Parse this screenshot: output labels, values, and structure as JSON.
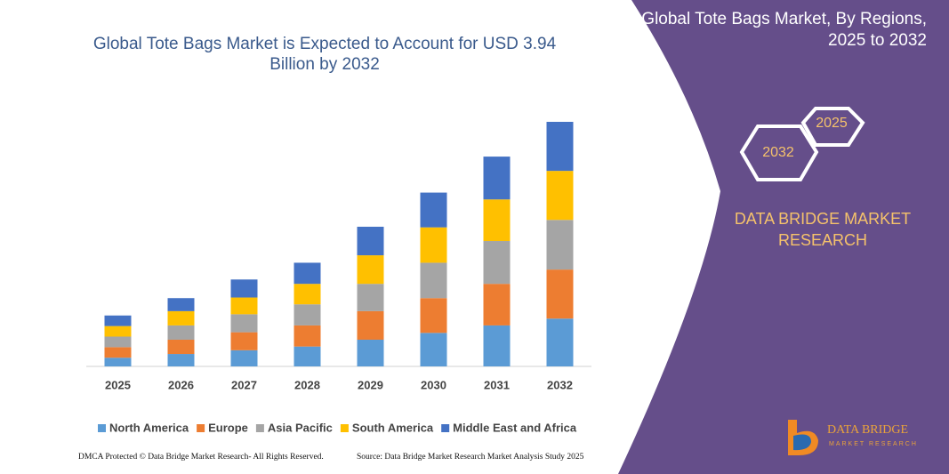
{
  "chart_data": {
    "type": "stacked_bar",
    "title": "Global Tote Bags Market is Expected to Account for USD 3.94 Billion by 2032",
    "categories": [
      "2025",
      "2026",
      "2027",
      "2028",
      "2029",
      "2030",
      "2031",
      "2032"
    ],
    "series": [
      {
        "name": "North America",
        "color": "#5b9bd5",
        "values": [
          0.14,
          0.2,
          0.26,
          0.32,
          0.43,
          0.54,
          0.66,
          0.77
        ]
      },
      {
        "name": "Europe",
        "color": "#ed7d31",
        "values": [
          0.17,
          0.23,
          0.29,
          0.34,
          0.46,
          0.56,
          0.67,
          0.79
        ]
      },
      {
        "name": "Asia Pacific",
        "color": "#a5a5a5",
        "values": [
          0.17,
          0.23,
          0.29,
          0.34,
          0.44,
          0.57,
          0.69,
          0.8
        ]
      },
      {
        "name": "South America",
        "color": "#ffc000",
        "values": [
          0.17,
          0.23,
          0.27,
          0.33,
          0.46,
          0.57,
          0.67,
          0.79
        ]
      },
      {
        "name": "Middle East and Africa",
        "color": "#4472c4",
        "values": [
          0.17,
          0.21,
          0.29,
          0.34,
          0.46,
          0.56,
          0.69,
          0.79
        ]
      }
    ],
    "legend": "bottom"
  },
  "panel": {
    "title": "Global Tote Bags Market, By Regions, 2025 to 2032",
    "hexagons": [
      "2025",
      "2032"
    ],
    "brand": "DATA BRIDGE MARKET RESEARCH"
  },
  "logo": {
    "name": "DATA BRIDGE",
    "tagline": "MARKET RESEARCH"
  },
  "footer": {
    "rights": "DMCA Protected © Data Bridge Market Research- All Rights Reserved.",
    "source": "Source: Data Bridge Market Research Market Analysis Study 2025"
  }
}
